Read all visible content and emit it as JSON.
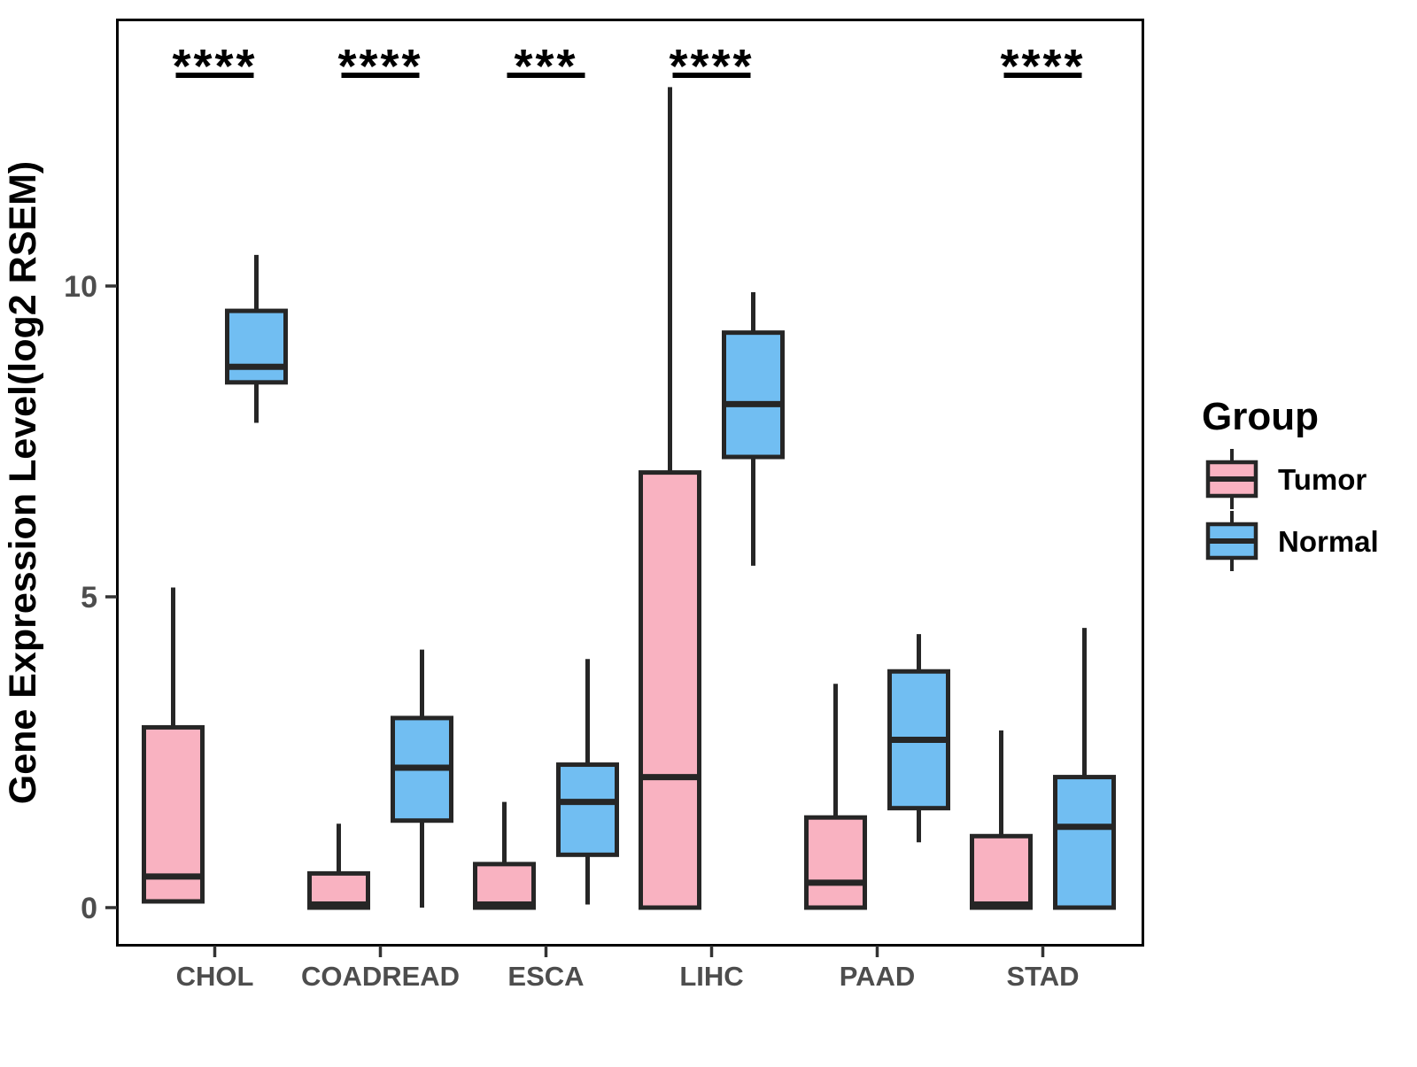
{
  "figure": {
    "background": "#FFFFFF"
  },
  "y_axis": {
    "label": "Gene Expression Level(log2 RSEM)",
    "tick_labels": [
      "0",
      "5",
      "10"
    ],
    "tick_values": [
      0,
      5,
      10
    ]
  },
  "x_axis": {
    "categories": [
      "CHOL",
      "COADREAD",
      "ESCA",
      "LIHC",
      "PAAD",
      "STAD"
    ]
  },
  "legend": {
    "title": "Group",
    "items": [
      {
        "label": "Tumor",
        "color": "#F9B2C1"
      },
      {
        "label": "Normal",
        "color": "#71BEF2"
      }
    ]
  },
  "colors": {
    "tumor_fill": "#F9B2C1",
    "normal_fill": "#71BEF2",
    "box_stroke": "#262626",
    "panel_border": "#000000",
    "tick_label": "#4D4D4D",
    "axis_title": "#000000",
    "significance": "#000000"
  },
  "chart_data": {
    "type": "boxplot",
    "title": "",
    "xlabel": "",
    "ylabel": "Gene Expression Level(log2 RSEM)",
    "ylim": [
      -0.6,
      14.3
    ],
    "yticks": [
      0,
      5,
      10
    ],
    "grid": false,
    "legend_position": "right",
    "categories": [
      "CHOL",
      "COADREAD",
      "ESCA",
      "LIHC",
      "PAAD",
      "STAD"
    ],
    "series": [
      {
        "name": "Tumor",
        "color": "#F9B2C1",
        "boxes": [
          {
            "category": "CHOL",
            "whisker_low": 0.1,
            "q1": 0.1,
            "median": 0.5,
            "q3": 2.9,
            "whisker_high": 5.15
          },
          {
            "category": "COADREAD",
            "whisker_low": 0,
            "q1": 0,
            "median": 0.05,
            "q3": 0.55,
            "whisker_high": 1.35
          },
          {
            "category": "ESCA",
            "whisker_low": 0,
            "q1": 0,
            "median": 0.05,
            "q3": 0.7,
            "whisker_high": 1.7
          },
          {
            "category": "LIHC",
            "whisker_low": 0,
            "q1": 0,
            "median": 2.1,
            "q3": 7.0,
            "whisker_high": 13.2
          },
          {
            "category": "PAAD",
            "whisker_low": 0,
            "q1": 0,
            "median": 0.4,
            "q3": 1.45,
            "whisker_high": 3.6
          },
          {
            "category": "STAD",
            "whisker_low": 0,
            "q1": 0,
            "median": 0.05,
            "q3": 1.15,
            "whisker_high": 2.85
          }
        ]
      },
      {
        "name": "Normal",
        "color": "#71BEF2",
        "boxes": [
          {
            "category": "CHOL",
            "whisker_low": 7.8,
            "q1": 8.45,
            "median": 8.7,
            "q3": 9.6,
            "whisker_high": 10.5
          },
          {
            "category": "COADREAD",
            "whisker_low": 0,
            "q1": 1.4,
            "median": 2.25,
            "q3": 3.05,
            "whisker_high": 4.15
          },
          {
            "category": "ESCA",
            "whisker_low": 0.05,
            "q1": 0.85,
            "median": 1.7,
            "q3": 2.3,
            "whisker_high": 4.0
          },
          {
            "category": "LIHC",
            "whisker_low": 5.5,
            "q1": 7.25,
            "median": 8.1,
            "q3": 9.25,
            "whisker_high": 9.9
          },
          {
            "category": "PAAD",
            "whisker_low": 1.05,
            "q1": 1.6,
            "median": 2.7,
            "q3": 3.8,
            "whisker_high": 4.4
          },
          {
            "category": "STAD",
            "whisker_low": 0,
            "q1": 0,
            "median": 1.3,
            "q3": 2.1,
            "whisker_high": 4.5
          }
        ]
      }
    ],
    "significance": [
      {
        "category": "CHOL",
        "label": "****"
      },
      {
        "category": "COADREAD",
        "label": "****"
      },
      {
        "category": "ESCA",
        "label": "***"
      },
      {
        "category": "LIHC",
        "label": "****"
      },
      {
        "category": "PAAD",
        "label": ""
      },
      {
        "category": "STAD",
        "label": "****"
      }
    ]
  }
}
